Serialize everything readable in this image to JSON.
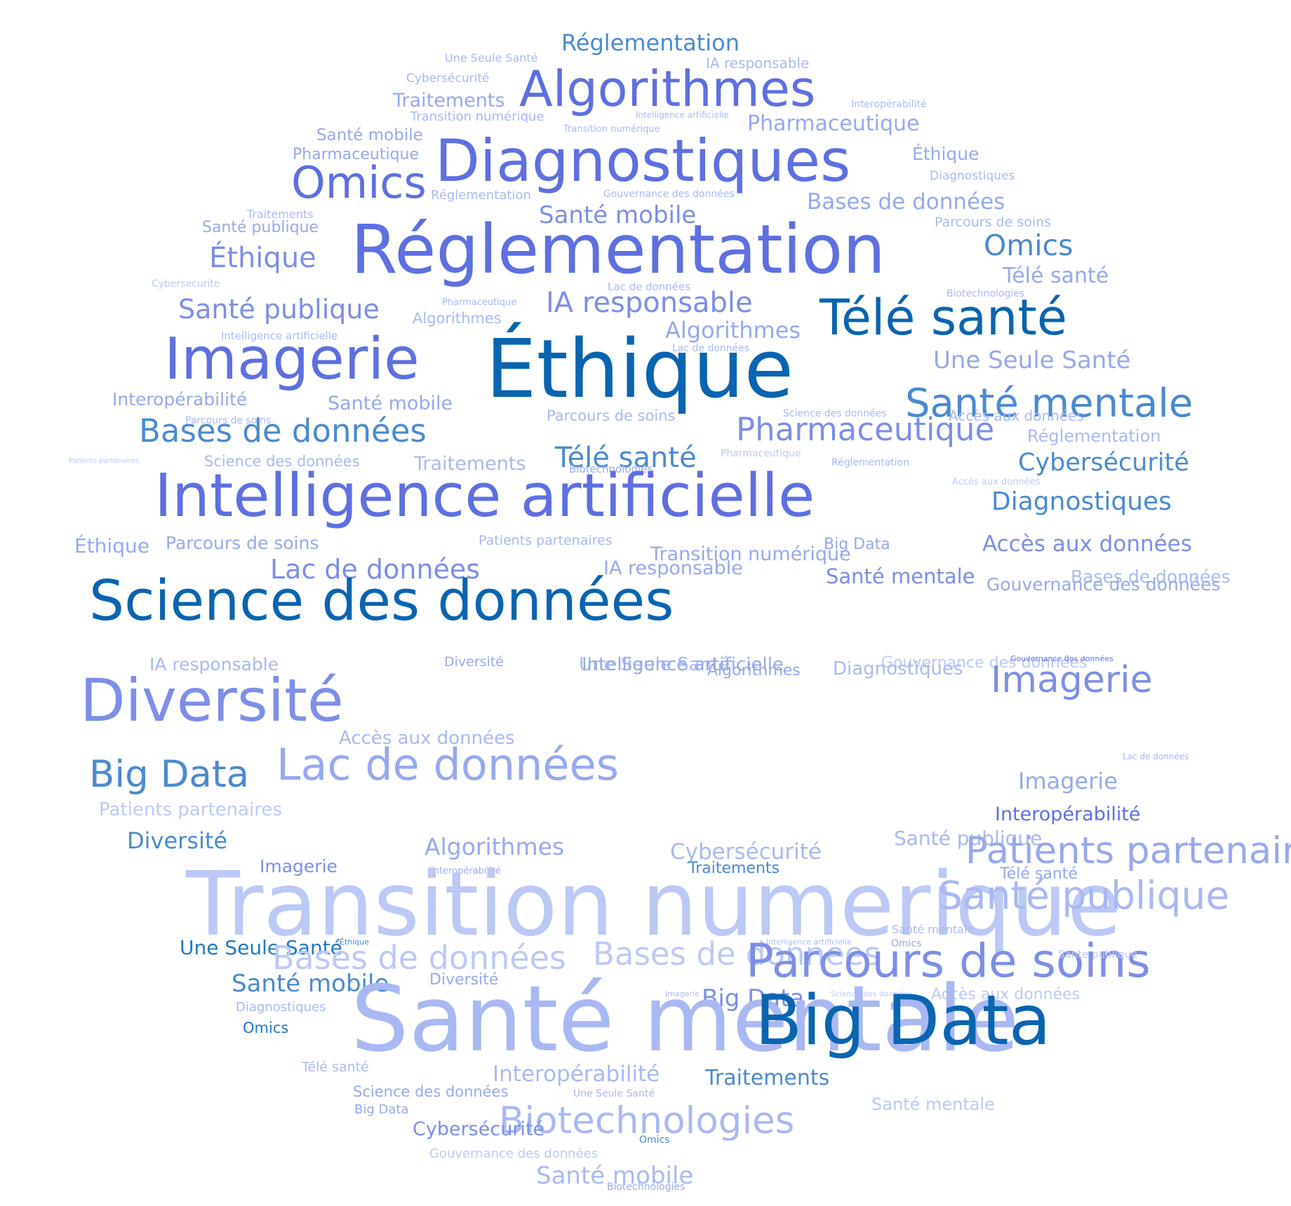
{
  "palette": {
    "c0": "#0a64b0",
    "c1": "#2179c4",
    "c2": "#5e6fe0",
    "c3": "#4a8ad0",
    "c4": "#7d8ee6",
    "c5": "#97a8ee",
    "c6": "#a9b8f2",
    "c7": "#bcc8f5"
  },
  "words": [
    {
      "text": "Réglementation",
      "cls": "c3"
    },
    {
      "text": "Une Seule Santé",
      "cls": "c6"
    },
    {
      "text": "IA responsable",
      "cls": "c6"
    },
    {
      "text": "Cybersécurité",
      "cls": "c6"
    },
    {
      "text": "Algorithmes",
      "cls": "c2"
    },
    {
      "text": "Traitements",
      "cls": "c5"
    },
    {
      "text": "Interopérabilité",
      "cls": "c6"
    },
    {
      "text": "Intelligence artificielle",
      "cls": "c6"
    },
    {
      "text": "Transition numérique",
      "cls": "c6"
    },
    {
      "text": "Transition numérique",
      "cls": "c6"
    },
    {
      "text": "Pharmaceutique",
      "cls": "c5"
    },
    {
      "text": "Santé mobile",
      "cls": "c5"
    },
    {
      "text": "Diagnostiques",
      "cls": "c2"
    },
    {
      "text": "Éthique",
      "cls": "c5"
    },
    {
      "text": "Pharmaceutique",
      "cls": "c5"
    },
    {
      "text": "Diagnostiques",
      "cls": "c6"
    },
    {
      "text": "Omics",
      "cls": "c2"
    },
    {
      "text": "Réglementation",
      "cls": "c6"
    },
    {
      "text": "Gouvernance des données",
      "cls": "c6"
    },
    {
      "text": "Bases de données",
      "cls": "c5"
    },
    {
      "text": "Traitements",
      "cls": "c6"
    },
    {
      "text": "Santé mobile",
      "cls": "c4"
    },
    {
      "text": "Santé publique",
      "cls": "c5"
    },
    {
      "text": "Parcours de soins",
      "cls": "c6"
    },
    {
      "text": "Réglementation",
      "cls": "c2"
    },
    {
      "text": "Omics",
      "cls": "c3"
    },
    {
      "text": "Éthique",
      "cls": "c4"
    },
    {
      "text": "Télé santé",
      "cls": "c5"
    },
    {
      "text": "Cybersecurite",
      "cls": "c7"
    },
    {
      "text": "Lac de données",
      "cls": "c6"
    },
    {
      "text": "Biotechnologies",
      "cls": "c6"
    },
    {
      "text": "Santé publique",
      "cls": "c4"
    },
    {
      "text": "Pharmaceutique",
      "cls": "c6"
    },
    {
      "text": "IA responsable",
      "cls": "c4"
    },
    {
      "text": "Télé santé",
      "cls": "c0"
    },
    {
      "text": "Algorithmes",
      "cls": "c6"
    },
    {
      "text": "Algorithmes",
      "cls": "c5"
    },
    {
      "text": "Intelligence artificielle",
      "cls": "c6"
    },
    {
      "text": "Imagerie",
      "cls": "c2"
    },
    {
      "text": "Éthique",
      "cls": "c0"
    },
    {
      "text": "Lac de données",
      "cls": "c6"
    },
    {
      "text": "Une Seule Santé",
      "cls": "c5"
    },
    {
      "text": "Interopérabilité",
      "cls": "c5"
    },
    {
      "text": "Santé mobile",
      "cls": "c5"
    },
    {
      "text": "Santé mentale",
      "cls": "c3"
    },
    {
      "text": "Parcours de soins",
      "cls": "c6"
    },
    {
      "text": "Science des données",
      "cls": "c6"
    },
    {
      "text": "Parcours de soins",
      "cls": "c6"
    },
    {
      "text": "Accès aux données",
      "cls": "c6"
    },
    {
      "text": "Bases de données",
      "cls": "c3"
    },
    {
      "text": "Pharmaceutique",
      "cls": "c4"
    },
    {
      "text": "Réglementation",
      "cls": "c6"
    },
    {
      "text": "Patients partenaires",
      "cls": "c7"
    },
    {
      "text": "Télé santé",
      "cls": "c3"
    },
    {
      "text": "Pharmaceutique",
      "cls": "c7"
    },
    {
      "text": "Science des données",
      "cls": "c6"
    },
    {
      "text": "Traitements",
      "cls": "c6"
    },
    {
      "text": "Biotechnologies",
      "cls": "c5"
    },
    {
      "text": "Réglementation",
      "cls": "c6"
    },
    {
      "text": "Cybersécurité",
      "cls": "c3"
    },
    {
      "text": "Accès aux données",
      "cls": "c7"
    },
    {
      "text": "Intelligence artificielle",
      "cls": "c2"
    },
    {
      "text": "Diagnostiques",
      "cls": "c3"
    },
    {
      "text": "Éthique",
      "cls": "c5"
    },
    {
      "text": "Parcours de soins",
      "cls": "c5"
    },
    {
      "text": "Patients partenaires",
      "cls": "c6"
    },
    {
      "text": "Transition numérique",
      "cls": "c5"
    },
    {
      "text": "Big Data",
      "cls": "c5"
    },
    {
      "text": "Accès aux données",
      "cls": "c4"
    },
    {
      "text": "Lac de données",
      "cls": "c4"
    },
    {
      "text": "IA responsable",
      "cls": "c5"
    },
    {
      "text": "Santé mentale",
      "cls": "c4"
    },
    {
      "text": "Bases de données",
      "cls": "c6"
    },
    {
      "text": "Science des données",
      "cls": "c0"
    },
    {
      "text": "Gouvernance des données",
      "cls": "c5"
    },
    {
      "text": "IA responsable",
      "cls": "c6"
    },
    {
      "text": "Diversité",
      "cls": "c5"
    },
    {
      "text": "Une Seule Santé",
      "cls": "c6"
    },
    {
      "text": "Algorithmes",
      "cls": "c5"
    },
    {
      "text": "Gouvernance des données",
      "cls": "c7"
    },
    {
      "text": "Gouvernance des données",
      "cls": "c2"
    },
    {
      "text": "Diversité",
      "cls": "c4"
    },
    {
      "text": "Imagerie",
      "cls": "c4"
    },
    {
      "text": "Diagnostiques",
      "cls": "c6"
    },
    {
      "text": "Intelligence artificielle",
      "cls": "c5"
    },
    {
      "text": "Accès aux données",
      "cls": "c6"
    },
    {
      "text": "Lac de données",
      "cls": "c6"
    },
    {
      "text": "Big Data",
      "cls": "c3"
    },
    {
      "text": "Lac de données",
      "cls": "c5"
    },
    {
      "text": "Imagerie",
      "cls": "c5"
    },
    {
      "text": "Patients partenaires",
      "cls": "c7"
    },
    {
      "text": "Interopérabilité",
      "cls": "c2"
    },
    {
      "text": "Diversité",
      "cls": "c3"
    },
    {
      "text": "Algorithmes",
      "cls": "c5"
    },
    {
      "text": "Cybersécurité",
      "cls": "c6"
    },
    {
      "text": "Santé publique",
      "cls": "c6"
    },
    {
      "text": "Patients partenaires",
      "cls": "c5"
    },
    {
      "text": "Imagerie",
      "cls": "c4"
    },
    {
      "text": "Interopérabilité",
      "cls": "c5"
    },
    {
      "text": "Traitements",
      "cls": "c3"
    },
    {
      "text": "Télé santé",
      "cls": "c5"
    },
    {
      "text": "Transition numerique",
      "cls": "c7"
    },
    {
      "text": "Santé publique",
      "cls": "c6"
    },
    {
      "text": "Santé mentale",
      "cls": "c6"
    },
    {
      "text": "Une Seule Santé",
      "cls": "c1"
    },
    {
      "text": "Éthique",
      "cls": "c3"
    },
    {
      "text": "Intelligence artificielle",
      "cls": "c6"
    },
    {
      "text": "Omics",
      "cls": "c5"
    },
    {
      "text": "Bases de données",
      "cls": "c7"
    },
    {
      "text": "Bases de donnees",
      "cls": "c7"
    },
    {
      "text": "Parcours de soins",
      "cls": "c4"
    },
    {
      "text": "Big Data",
      "cls": "c4"
    },
    {
      "text": "Santé mobile",
      "cls": "c3"
    },
    {
      "text": "Sante publique",
      "cls": "c7"
    },
    {
      "text": "Diversité",
      "cls": "c5"
    },
    {
      "text": "Imagerie",
      "cls": "c6"
    },
    {
      "text": "Science des données",
      "cls": "c7"
    },
    {
      "text": "Accès aux données",
      "cls": "c7"
    },
    {
      "text": "Diagnostiques",
      "cls": "c6"
    },
    {
      "text": "Santé mentale",
      "cls": "c6"
    },
    {
      "text": "Big Data",
      "cls": "c0"
    },
    {
      "text": "Omics",
      "cls": "c1"
    },
    {
      "text": "Télé santé",
      "cls": "c6"
    },
    {
      "text": "Interopérabilité",
      "cls": "c6"
    },
    {
      "text": "Traitements",
      "cls": "c3"
    },
    {
      "text": "Science des données",
      "cls": "c5"
    },
    {
      "text": "Une Seule Santé",
      "cls": "c6"
    },
    {
      "text": "Santé mentale",
      "cls": "c7"
    },
    {
      "text": "Big Data",
      "cls": "c5"
    },
    {
      "text": "Biotechnologies",
      "cls": "c6"
    },
    {
      "text": "Cybersécurité",
      "cls": "c4"
    },
    {
      "text": "Omics",
      "cls": "c3"
    },
    {
      "text": "Gouvernance des données",
      "cls": "c7"
    },
    {
      "text": "Santé mobile",
      "cls": "c6"
    },
    {
      "text": "Biotechnologies",
      "cls": "c5"
    },
    {
      "text": "Patients partenaires",
      "cls": "c7"
    }
  ]
}
